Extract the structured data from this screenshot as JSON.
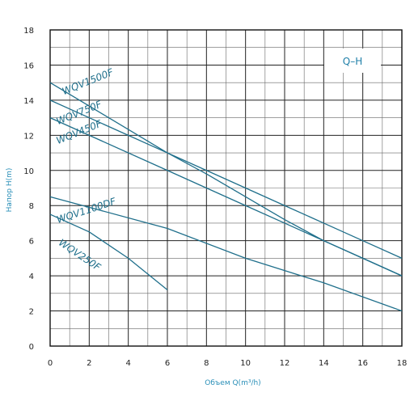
{
  "chart_data": {
    "type": "line",
    "title": "",
    "legend_box": "Q–H",
    "xlabel": "Объем Q(m³/h)",
    "ylabel": "Напор H(m)",
    "xlim": [
      0,
      18
    ],
    "ylim": [
      0,
      18
    ],
    "x_ticks": [
      0,
      2,
      4,
      6,
      8,
      10,
      12,
      14,
      16,
      18
    ],
    "y_ticks": [
      0,
      2,
      4,
      6,
      8,
      10,
      12,
      14,
      16,
      18
    ],
    "grid": true,
    "line_color": "#1f6f8b",
    "series": [
      {
        "name": "WQV1500F",
        "x": [
          0,
          6,
          8,
          10,
          12,
          14,
          16,
          18
        ],
        "y": [
          15.0,
          11.0,
          10.0,
          9.0,
          8.0,
          7.0,
          6.0,
          5.0
        ]
      },
      {
        "name": "WQV750F",
        "x": [
          0,
          6,
          8,
          10,
          12,
          14,
          16,
          18
        ],
        "y": [
          14.0,
          11.0,
          9.8,
          8.5,
          7.2,
          6.0,
          5.0,
          4.0
        ]
      },
      {
        "name": "WQV450F",
        "x": [
          0,
          6,
          8,
          10,
          12,
          14,
          16,
          18
        ],
        "y": [
          13.0,
          10.0,
          9.0,
          8.0,
          7.0,
          6.0,
          5.0,
          4.0
        ]
      },
      {
        "name": "WQV1100DF",
        "x": [
          0,
          6,
          10,
          14,
          18
        ],
        "y": [
          8.5,
          6.7,
          5.0,
          3.6,
          2.0
        ]
      },
      {
        "name": "WQV250F",
        "x": [
          0,
          2,
          4,
          6
        ],
        "y": [
          7.5,
          6.5,
          5.0,
          3.2
        ]
      }
    ]
  }
}
